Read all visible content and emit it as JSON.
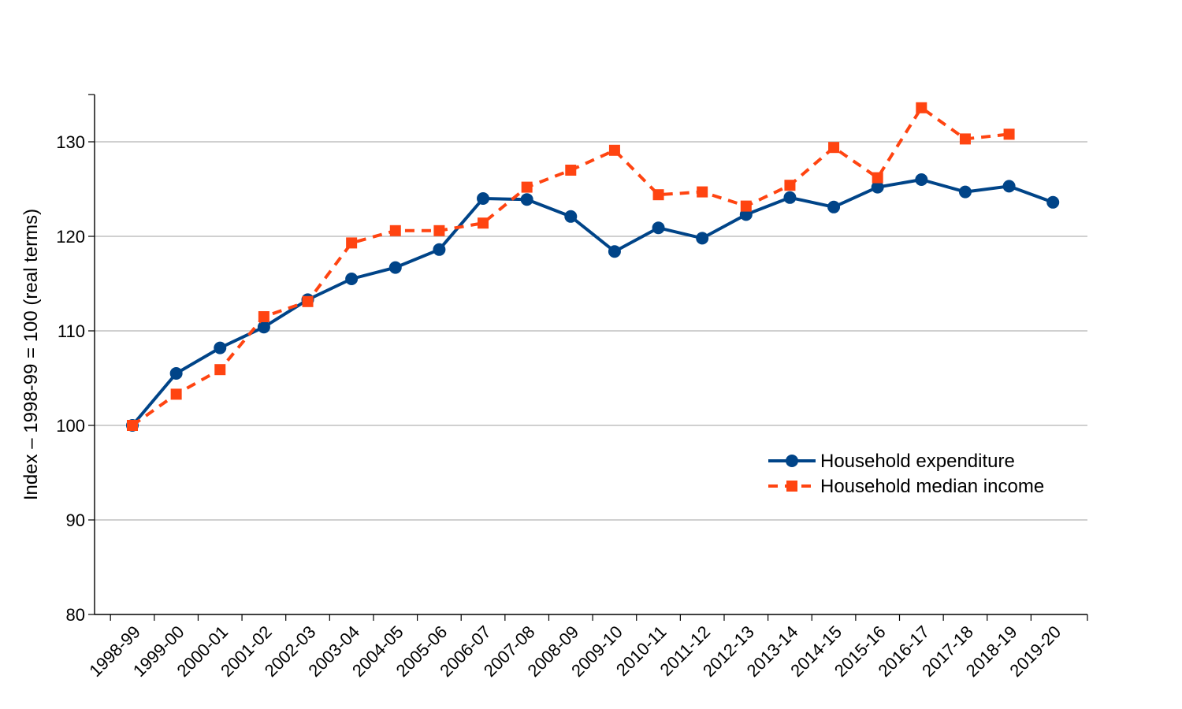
{
  "chart_data": {
    "type": "line",
    "ylabel": "Index – 1998-99 = 100 (real terms)",
    "xlabel": "",
    "ylim": [
      80,
      135
    ],
    "yticks": [
      80,
      90,
      100,
      110,
      120,
      130
    ],
    "grid": true,
    "legend_position": "bottom-right",
    "categories": [
      "1998-99",
      "1999-00",
      "2000-01",
      "2001-02",
      "2002-03",
      "2003-04",
      "2004-05",
      "2005-06",
      "2006-07",
      "2007-08",
      "2008-09",
      "2009-10",
      "2010-11",
      "2011-12",
      "2012-13",
      "2013-14",
      "2014-15",
      "2015-16",
      "2016-17",
      "2017-18",
      "2018-19",
      "2019-20"
    ],
    "series": [
      {
        "name": "Household expenditure",
        "color": "#004488",
        "marker": "circle",
        "dash": "solid",
        "values": [
          100.0,
          105.5,
          108.2,
          110.4,
          113.3,
          115.5,
          116.7,
          118.6,
          124.0,
          123.9,
          122.1,
          118.4,
          120.9,
          119.8,
          122.3,
          124.1,
          123.1,
          125.2,
          126.0,
          124.7,
          125.3,
          123.6
        ]
      },
      {
        "name": "Household median income",
        "color": "#FF4411",
        "marker": "square",
        "dash": "dashed",
        "values": [
          100.0,
          103.3,
          105.9,
          111.5,
          113.1,
          119.3,
          120.6,
          120.6,
          121.4,
          125.2,
          127.0,
          129.1,
          124.4,
          124.7,
          123.2,
          125.4,
          129.4,
          126.2,
          133.6,
          130.3,
          130.8,
          null
        ]
      }
    ]
  }
}
